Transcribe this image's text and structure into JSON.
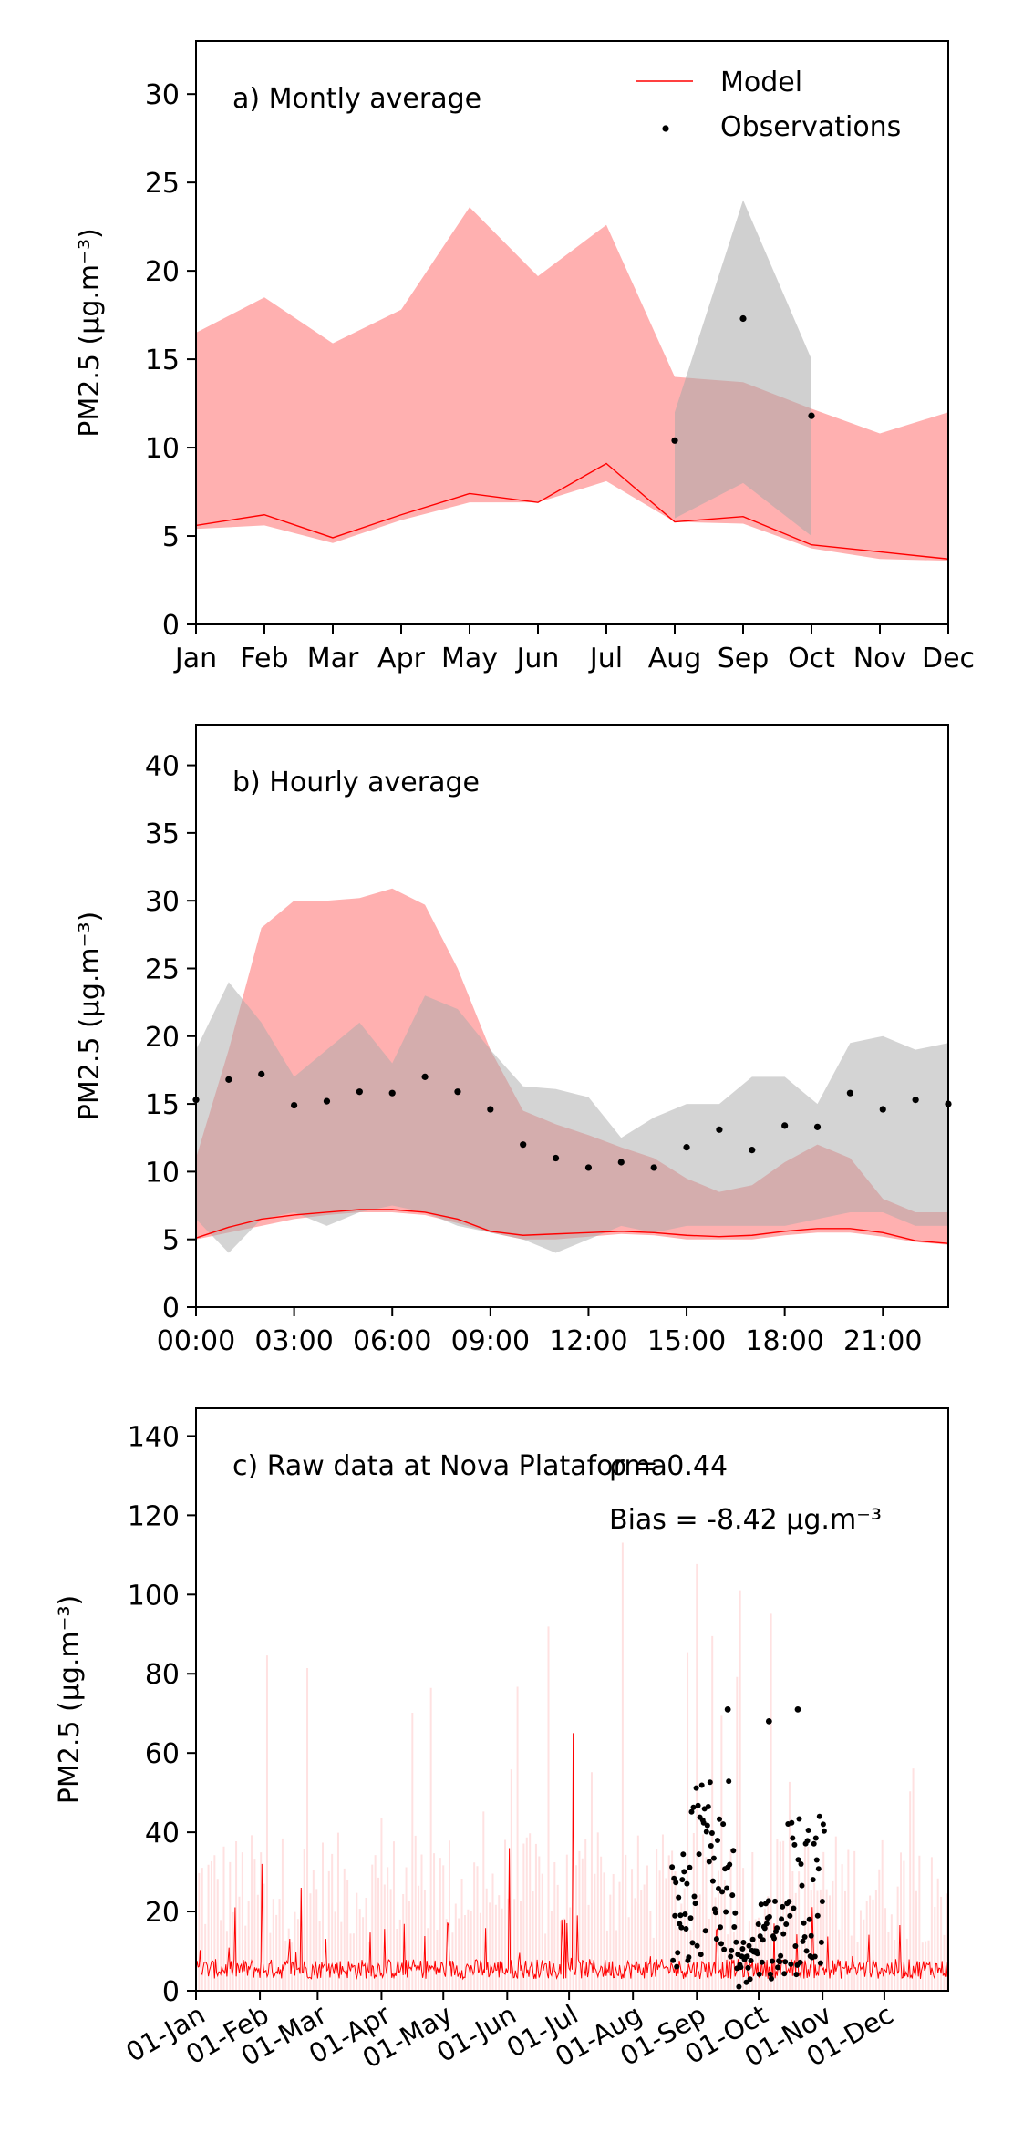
{
  "chart_data": [
    {
      "type": "area",
      "panel_label": "a) Montly average",
      "ylabel": "PM2.5 (μg.m⁻³)",
      "categories": [
        "Jan",
        "Feb",
        "Mar",
        "Apr",
        "May",
        "Jun",
        "Jul",
        "Aug",
        "Sep",
        "Oct",
        "Nov",
        "Dec"
      ],
      "ylim": [
        0,
        33
      ],
      "yticks": [
        0,
        5,
        10,
        15,
        20,
        25,
        30
      ],
      "legend": {
        "position": "top-right",
        "entries": [
          "Model",
          "Observations"
        ]
      },
      "series": [
        {
          "name": "Model",
          "kind": "line",
          "color": "#ff0000",
          "values": [
            5.6,
            6.2,
            4.9,
            6.2,
            7.4,
            6.9,
            9.1,
            5.8,
            6.1,
            4.5,
            4.1,
            3.7
          ]
        },
        {
          "name": "Model range",
          "kind": "band",
          "color": "#ffb0b0",
          "low": [
            5.4,
            5.6,
            4.6,
            5.9,
            6.9,
            6.9,
            8.1,
            5.8,
            5.7,
            4.3,
            3.7,
            3.6
          ],
          "high": [
            16.5,
            18.5,
            15.9,
            17.8,
            23.6,
            19.7,
            22.6,
            14.0,
            13.7,
            12.2,
            10.8,
            12.0
          ]
        },
        {
          "name": "Observations",
          "kind": "points",
          "color": "#000000",
          "x": [
            "Aug",
            "Sep",
            "Oct"
          ],
          "values": [
            10.4,
            17.3,
            11.8
          ]
        },
        {
          "name": "Observation range",
          "kind": "band",
          "color": "#d3d3d3",
          "x": [
            "Aug",
            "Sep",
            "Oct"
          ],
          "low": [
            6.0,
            8.0,
            5.0
          ],
          "high": [
            12.0,
            24.0,
            15.0
          ]
        }
      ]
    },
    {
      "type": "area",
      "panel_label": "b) Hourly average",
      "ylabel": "PM2.5 (μg.m⁻³)",
      "x": [
        0,
        1,
        2,
        3,
        4,
        5,
        6,
        7,
        8,
        9,
        10,
        11,
        12,
        13,
        14,
        15,
        16,
        17,
        18,
        19,
        20,
        21,
        22,
        23
      ],
      "xticks": [
        "00:00",
        "03:00",
        "06:00",
        "09:00",
        "12:00",
        "15:00",
        "18:00",
        "21:00"
      ],
      "ylim": [
        0,
        43
      ],
      "yticks": [
        0,
        5,
        10,
        15,
        20,
        25,
        30,
        35,
        40
      ],
      "series": [
        {
          "name": "Model",
          "kind": "line",
          "color": "#ff0000",
          "values": [
            5.1,
            5.9,
            6.5,
            6.8,
            7.0,
            7.2,
            7.2,
            7.0,
            6.5,
            5.6,
            5.3,
            5.4,
            5.5,
            5.6,
            5.5,
            5.3,
            5.2,
            5.3,
            5.6,
            5.8,
            5.8,
            5.5,
            4.9,
            4.7
          ]
        },
        {
          "name": "Model range",
          "kind": "band",
          "color": "#ffb0b0",
          "low": [
            5.0,
            5.5,
            6.0,
            6.5,
            6.8,
            7.0,
            7.0,
            6.8,
            6.2,
            5.5,
            5.0,
            5.0,
            5.2,
            5.4,
            5.3,
            5.0,
            5.0,
            5.0,
            5.3,
            5.5,
            5.5,
            5.2,
            4.8,
            4.6
          ],
          "high": [
            11.0,
            19.0,
            28.0,
            30.0,
            30.0,
            30.2,
            30.9,
            29.7,
            25.0,
            19.0,
            14.5,
            13.5,
            12.7,
            11.8,
            11.0,
            9.5,
            8.5,
            9.0,
            10.7,
            12.0,
            11.0,
            8.0,
            7.0,
            7.0
          ]
        },
        {
          "name": "Observations",
          "kind": "points",
          "color": "#000000",
          "values": [
            15.3,
            16.8,
            17.2,
            14.9,
            15.2,
            15.9,
            15.8,
            17.0,
            15.9,
            14.6,
            12.0,
            11.0,
            10.3,
            10.7,
            10.3,
            11.8,
            13.1,
            11.6,
            13.4,
            13.3,
            15.8,
            14.6,
            15.3,
            15.0
          ]
        },
        {
          "name": "Observation range",
          "kind": "band",
          "color": "#d3d3d3",
          "low": [
            6.5,
            4.0,
            6.5,
            7.0,
            6.0,
            7.0,
            7.5,
            7.0,
            6.0,
            5.5,
            5.0,
            4.0,
            5.0,
            6.0,
            5.5,
            6.0,
            6.0,
            6.0,
            6.0,
            6.5,
            7.0,
            7.0,
            6.0,
            6.0
          ],
          "high": [
            19.0,
            24.0,
            21.0,
            17.0,
            19.0,
            21.0,
            18.0,
            23.0,
            22.0,
            19.0,
            16.3,
            16.1,
            15.5,
            12.5,
            14.0,
            15.0,
            15.0,
            17.0,
            17.0,
            15.0,
            19.5,
            20.0,
            19.0,
            19.5
          ]
        }
      ]
    },
    {
      "type": "line",
      "panel_label": "c) Raw data at Nova Plataforma",
      "r_label": "ρ = 0.44",
      "bias_label": "Bias = -8.42 μg.m⁻³",
      "ylabel": "PM2.5 (μg.m⁻³)",
      "xticks": [
        "01-Jan",
        "01-Feb",
        "01-Mar",
        "01-Apr",
        "01-May",
        "01-Jun",
        "01-Jul",
        "01-Aug",
        "01-Sep",
        "01-Oct",
        "01-Nov",
        "01-Dec"
      ],
      "xlim_days": [
        0,
        365
      ],
      "ylim": [
        0,
        147
      ],
      "yticks": [
        0,
        20,
        40,
        60,
        80,
        100,
        120,
        140
      ],
      "series": [
        {
          "name": "Model",
          "kind": "line",
          "color": "#ff0000",
          "note_peaks": [
            {
              "day": 32,
              "value": 32
            },
            {
              "day": 51,
              "value": 26
            },
            {
              "day": 152,
              "value": 36
            },
            {
              "day": 183,
              "value": 65
            }
          ],
          "typical_range": [
            2,
            12
          ]
        },
        {
          "name": "Observations",
          "kind": "points",
          "color": "#000000",
          "day_range": [
            231,
            305
          ],
          "peaks": [
            {
              "day": 258,
              "value": 71
            },
            {
              "day": 278,
              "value": 68
            },
            {
              "day": 292,
              "value": 71
            }
          ],
          "typical_range": [
            0,
            40
          ]
        }
      ]
    }
  ]
}
